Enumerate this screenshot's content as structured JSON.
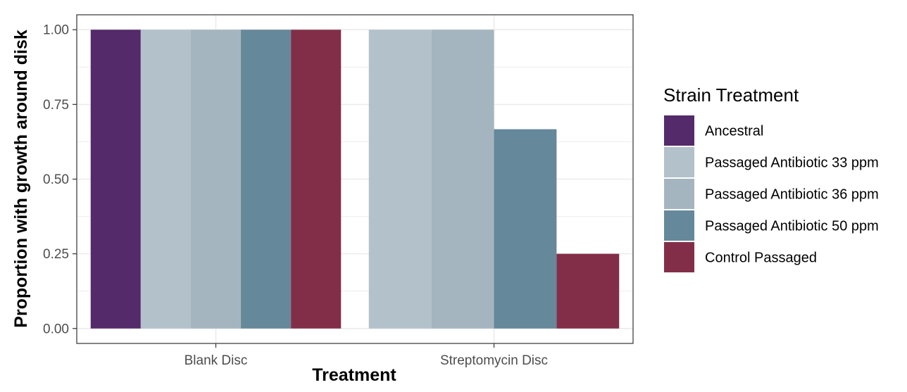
{
  "chart_data": {
    "type": "bar",
    "xlabel": "Treatment",
    "ylabel": "Proportion with growth around disk",
    "categories": [
      "Blank Disc",
      "Streptomycin Disc"
    ],
    "ylim": [
      0,
      1
    ],
    "yticks": [
      "0.00",
      "0.25",
      "0.50",
      "0.75",
      "1.00"
    ],
    "grid": true,
    "legend": {
      "title": "Strain Treatment",
      "placement": "right"
    },
    "series": [
      {
        "name": "Ancestral",
        "color": "#542a6a",
        "values": [
          1.0,
          null
        ]
      },
      {
        "name": "Passaged Antibiotic 33 ppm",
        "color": "#b2c1ca",
        "values": [
          1.0,
          1.0
        ]
      },
      {
        "name": "Passaged Antibiotic 36 ppm",
        "color": "#a5b5bf",
        "values": [
          1.0,
          1.0
        ]
      },
      {
        "name": "Passaged Antibiotic 50 ppm",
        "color": "#66889b",
        "values": [
          1.0,
          0.667
        ]
      },
      {
        "name": "Control Passaged",
        "color": "#832e48",
        "values": [
          1.0,
          0.25
        ]
      }
    ]
  }
}
